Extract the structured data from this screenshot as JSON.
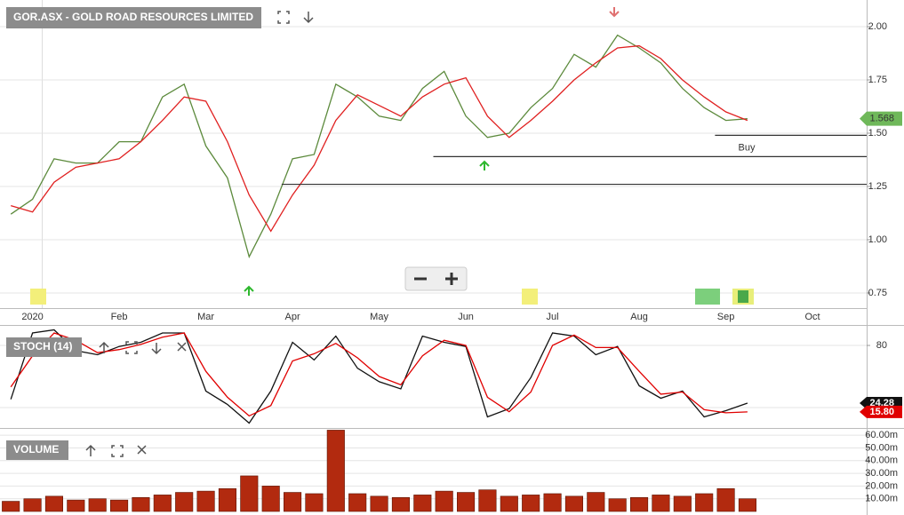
{
  "chart_data": [
    {
      "type": "line",
      "title": "GOR.ASX - GOLD ROAD RESOURCES LIMITED",
      "categories": [
        null,
        "2020",
        null,
        null,
        null,
        "Feb",
        null,
        null,
        null,
        "Mar",
        null,
        null,
        null,
        "Apr",
        null,
        null,
        null,
        "May",
        null,
        null,
        null,
        "Jun",
        null,
        null,
        null,
        "Jul",
        null,
        null,
        null,
        "Aug",
        null,
        null,
        null,
        "Sep",
        null,
        null,
        null,
        "Oct",
        null,
        null
      ],
      "series": [
        {
          "color": "#5c8a3c",
          "values": [
            1.12,
            1.19,
            1.38,
            1.36,
            1.36,
            1.46,
            1.46,
            1.67,
            1.73,
            1.44,
            1.29,
            0.92,
            1.12,
            1.38,
            1.4,
            1.73,
            1.67,
            1.58,
            1.56,
            1.71,
            1.79,
            1.58,
            1.48,
            1.5,
            1.62,
            1.71,
            1.87,
            1.81,
            1.96,
            1.9,
            1.83,
            1.71,
            1.62,
            1.56,
            1.568,
            null,
            null,
            null,
            null,
            null
          ]
        },
        {
          "color": "#e02020",
          "values": [
            1.16,
            1.13,
            1.27,
            1.34,
            1.36,
            1.38,
            1.46,
            1.56,
            1.67,
            1.65,
            1.46,
            1.21,
            1.04,
            1.21,
            1.35,
            1.56,
            1.68,
            1.63,
            1.58,
            1.67,
            1.73,
            1.76,
            1.58,
            1.48,
            1.56,
            1.65,
            1.75,
            1.83,
            1.9,
            1.91,
            1.85,
            1.75,
            1.67,
            1.6,
            1.56,
            null,
            null,
            null,
            null,
            null
          ]
        }
      ],
      "last_value": 1.568,
      "levels": [
        {
          "value": 1.49,
          "start_index": 33
        },
        {
          "value": 1.39,
          "start_index": 20
        },
        {
          "value": 1.26,
          "start_index": 13
        }
      ],
      "annotation": "Buy",
      "ylim": [
        0.679,
        2.125
      ],
      "yticks": [
        {
          "value": 0.75,
          "label": "0.75"
        },
        {
          "value": 1,
          "label": "1.00"
        },
        {
          "value": 1.25,
          "label": "1.25"
        },
        {
          "value": 1.5,
          "label": "1.50"
        },
        {
          "value": 1.75,
          "label": "1.75"
        },
        {
          "value": 2,
          "label": "2.00"
        }
      ],
      "grid": true
    },
    {
      "type": "line",
      "title": "STOCH (14)",
      "series": [
        {
          "color": "#111111",
          "last": 24.28,
          "values": [
            28,
            92,
            95,
            75,
            71,
            79,
            83,
            92,
            92,
            36,
            23,
            5,
            36,
            83,
            66,
            89,
            58,
            45,
            38,
            89,
            83,
            79,
            11,
            19,
            49,
            92,
            89,
            71,
            79,
            41,
            29,
            36,
            11,
            17,
            24.28,
            null,
            null,
            null,
            null,
            null
          ]
        },
        {
          "color": "#e00000",
          "last": {
            "value": 15.8,
            "label": "15.80"
          },
          "values": [
            40,
            70,
            92,
            85,
            73,
            76,
            81,
            88,
            92,
            55,
            30,
            12,
            22,
            65,
            72,
            82,
            68,
            50,
            42,
            70,
            85,
            80,
            30,
            16,
            35,
            80,
            90,
            78,
            78,
            55,
            33,
            35,
            18,
            15,
            15.8,
            null,
            null,
            null,
            null,
            null
          ]
        }
      ],
      "ylim": [
        0.3,
        98.9
      ],
      "yticks": [
        80
      ],
      "grid": true
    },
    {
      "type": "bar",
      "title": "VOLUME",
      "color": "#b22a0f",
      "values": [
        8,
        10,
        12,
        9,
        10,
        9,
        11,
        13,
        15,
        16,
        18,
        28,
        20,
        15,
        14,
        64,
        14,
        12,
        11,
        13,
        16,
        15,
        17,
        12,
        13,
        14,
        12,
        15,
        10,
        11,
        13,
        12,
        14,
        18,
        10,
        null,
        null,
        null,
        null,
        null
      ],
      "ylim": [
        0,
        65
      ],
      "yticks": [
        {
          "value": 10,
          "label": "10.00m"
        },
        {
          "value": 20,
          "label": "20.00m"
        },
        {
          "value": 30,
          "label": "30.00m"
        },
        {
          "value": 40,
          "label": "40.00m"
        },
        {
          "value": 50,
          "label": "50.00m"
        },
        {
          "value": 60,
          "label": "60.00m"
        }
      ],
      "grid": true
    }
  ]
}
